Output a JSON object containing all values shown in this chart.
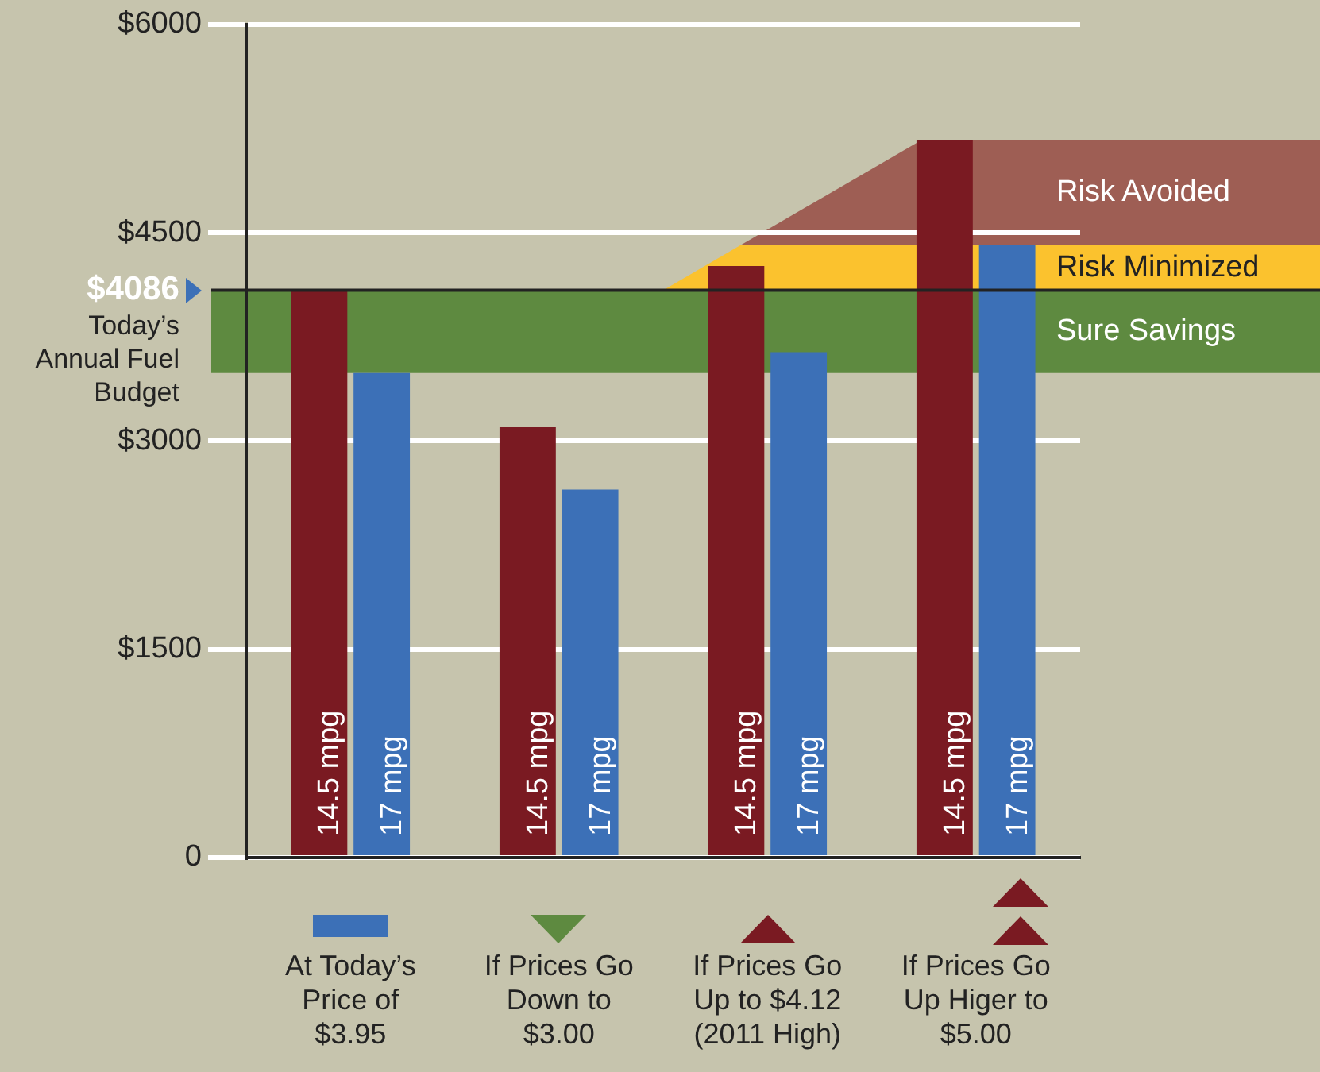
{
  "chart_data": {
    "type": "bar",
    "categories": [
      "At Today’s Price of $3.95",
      "If Prices Go Down to $3.00",
      "If Prices Go Up to $4.12 (2011 High)",
      "If Prices Go Up Higer to $5.00"
    ],
    "series": [
      {
        "name": "14.5 mpg",
        "color": "#7a1a22",
        "values": [
          4086,
          3100,
          4260,
          5170
        ]
      },
      {
        "name": "17 mpg",
        "color": "#3c70b7",
        "values": [
          3490,
          2650,
          3640,
          4410
        ]
      }
    ],
    "ylim": [
      0,
      6000
    ],
    "yticks": [
      0,
      {
        "value": 1500,
        "label": "$1500"
      },
      {
        "value": 3000,
        "label": "$3000"
      },
      {
        "value": 4500,
        "label": "$4500"
      },
      {
        "value": 6000,
        "label": "$6000"
      }
    ],
    "grid": "y",
    "legend": false,
    "ref_lines": [
      {
        "axis": "y",
        "value": 4086,
        "label": "$4086",
        "color": "#222222"
      }
    ],
    "bands": [
      {
        "axis": "y",
        "from": 3490,
        "to": 4086,
        "label": "Sure Savings",
        "color": "#5e8a40"
      },
      {
        "axis": "y",
        "from": 4086,
        "to": 4410,
        "label": "Risk Minimized",
        "color": "#fbc22e"
      },
      {
        "axis": "y",
        "from": 4410,
        "to": 5170,
        "label": "Risk Avoided",
        "color": "#9e5e54"
      }
    ],
    "annotations": [
      "Today’s Annual Fuel Budget"
    ]
  }
}
